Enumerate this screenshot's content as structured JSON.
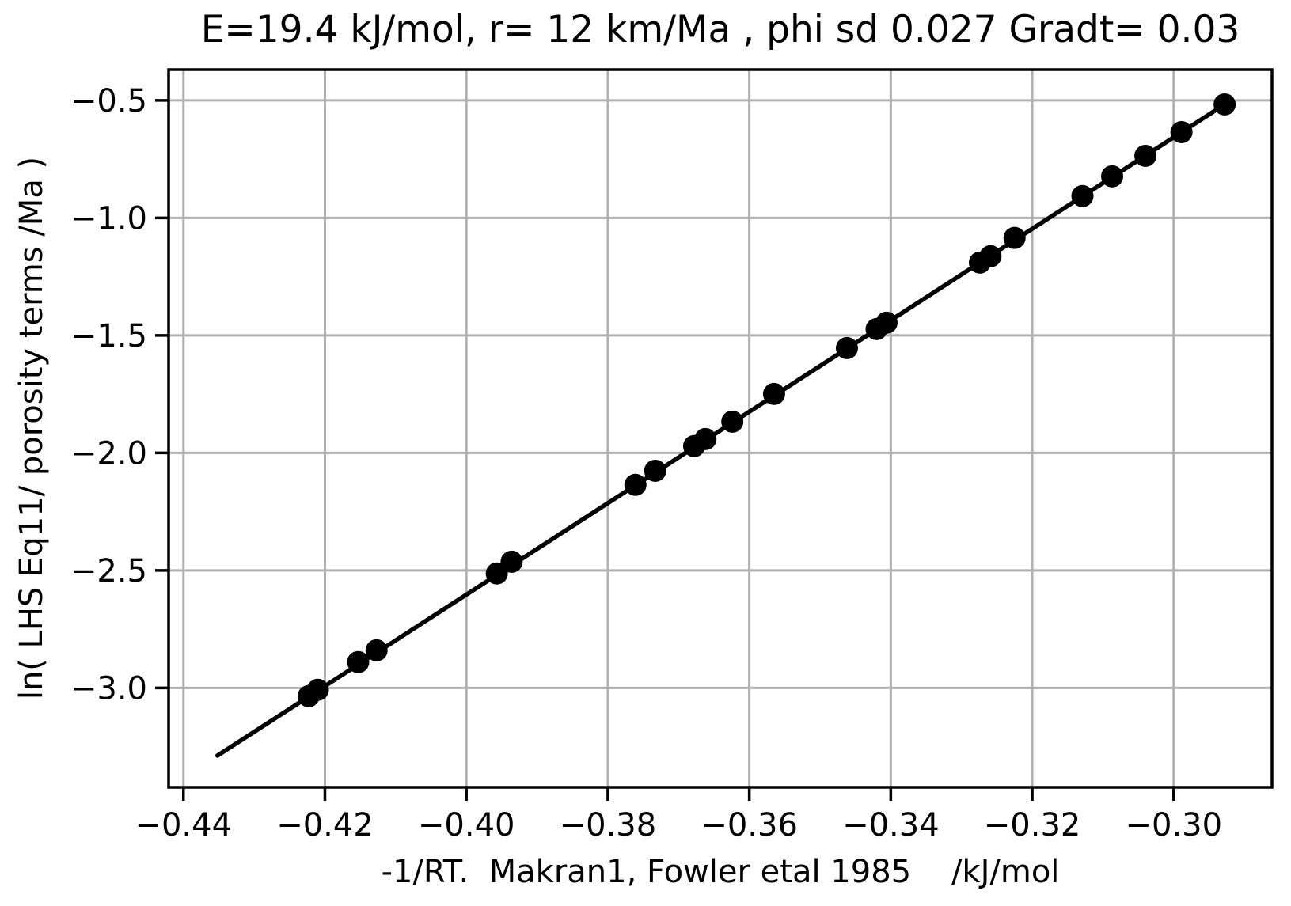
{
  "chart_data": {
    "type": "scatter",
    "title": "E=19.4 kJ/mol, r= 12 km/Ma , phi sd 0.027 Gradt= 0.03",
    "xlabel": "-1/RT.  Makran1, Fowler etal 1985    /kJ/mol",
    "ylabel": "ln( LHS Eq11/ porosity terms /Ma )",
    "xlim": [
      -0.4421,
      -0.2861
    ],
    "ylim": [
      -3.423,
      -0.369
    ],
    "grid": true,
    "legend": "none",
    "x_ticks": {
      "values": [
        -0.44,
        -0.42,
        -0.4,
        -0.38,
        -0.36,
        -0.34,
        -0.32,
        -0.3
      ],
      "labels": [
        "−0.44",
        "−0.42",
        "−0.40",
        "−0.38",
        "−0.36",
        "−0.34",
        "−0.32",
        "−0.30"
      ]
    },
    "y_ticks": {
      "values": [
        -0.5,
        -1.0,
        -1.5,
        -2.0,
        -2.5,
        -3.0
      ],
      "labels": [
        "−0.5",
        "−1.0",
        "−1.5",
        "−2.0",
        "−2.5",
        "−3.0"
      ]
    },
    "colors": {
      "background": "#ffffff",
      "axes": "#000000",
      "grid": "#b0b0b0",
      "line": "#000000",
      "marker": "#000000"
    },
    "series": [
      {
        "name": "fit-line",
        "type": "line",
        "color": "#000000",
        "x": [
          -0.4352,
          -0.2928
        ],
        "y": [
          -3.288,
          -0.517
        ]
      },
      {
        "name": "data-points",
        "type": "scatter",
        "color": "#000000",
        "x": [
          -0.4223,
          -0.421,
          -0.4153,
          -0.4127,
          -0.3957,
          -0.3936,
          -0.3761,
          -0.3733,
          -0.3678,
          -0.3662,
          -0.3624,
          -0.3565,
          -0.3462,
          -0.342,
          -0.3406,
          -0.3274,
          -0.3259,
          -0.3225,
          -0.3129,
          -0.3087,
          -0.304,
          -0.2989,
          -0.2928
        ],
        "y": [
          -3.035,
          -3.008,
          -2.89,
          -2.84,
          -2.513,
          -2.463,
          -2.136,
          -2.076,
          -1.971,
          -1.941,
          -1.867,
          -1.749,
          -1.554,
          -1.473,
          -1.446,
          -1.19,
          -1.163,
          -1.085,
          -0.907,
          -0.823,
          -0.736,
          -0.635,
          -0.517
        ]
      }
    ]
  }
}
